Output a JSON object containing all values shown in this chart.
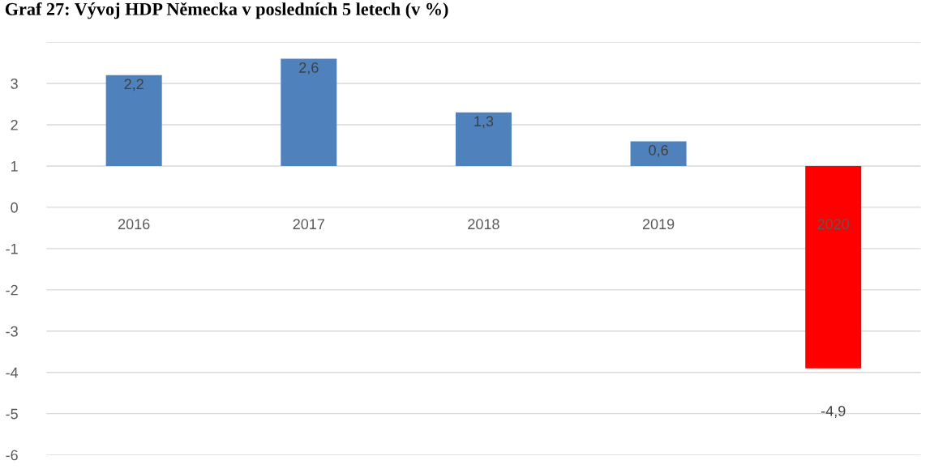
{
  "chart_data": {
    "type": "bar",
    "title": "Graf 27: Vývoj HDP Německa v posledních 5 letech (v %)",
    "categories": [
      "2016",
      "2017",
      "2018",
      "2019",
      "2020"
    ],
    "values": [
      2.2,
      2.6,
      1.3,
      0.6,
      -4.9
    ],
    "base": [
      1,
      1,
      1,
      1,
      1
    ],
    "value_labels": [
      "2,2",
      "2,6",
      "1,3",
      "0,6",
      "-4,9"
    ],
    "colors": [
      "#4f81bd",
      "#4f81bd",
      "#4f81bd",
      "#4f81bd",
      "#ff0000"
    ],
    "ylim": [
      -6,
      4
    ],
    "yticks": [
      {
        "value": 4,
        "label": null
      },
      3,
      2,
      1,
      0,
      -1,
      -2,
      -3,
      -4,
      -5,
      -6
    ],
    "grid": "y"
  }
}
